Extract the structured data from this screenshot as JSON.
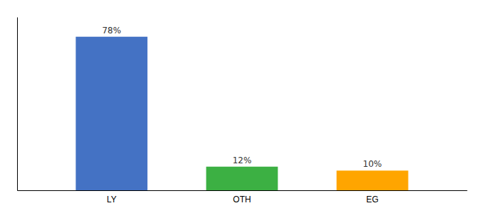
{
  "chart_data": {
    "type": "bar",
    "categories": [
      "LY",
      "OTH",
      "EG"
    ],
    "values": [
      78,
      12,
      10
    ],
    "value_labels": [
      "78%",
      "12%",
      "10%"
    ],
    "colors": [
      "#4472C4",
      "#3CB043",
      "#FFA500"
    ],
    "ylim": [
      0,
      88
    ],
    "data_labels": true,
    "tick_labels": "x"
  }
}
